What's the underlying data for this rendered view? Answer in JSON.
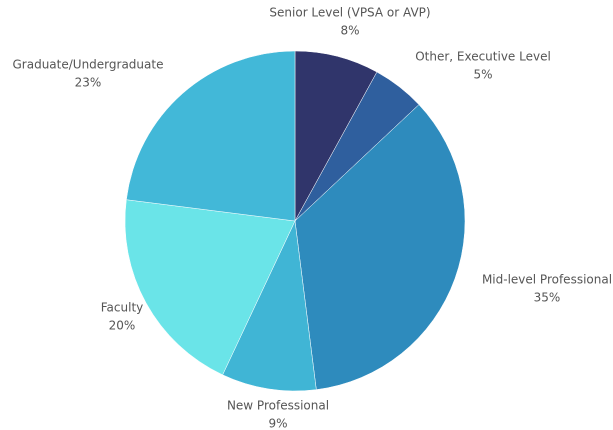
{
  "chart_data": {
    "type": "pie",
    "categories": [
      "Senior Level (VPSA or AVP)",
      "Other, Executive Level",
      "Mid-level Professional",
      "New Professional",
      "Faculty",
      "Graduate/Undergraduate"
    ],
    "values": [
      8,
      5,
      35,
      9,
      20,
      23
    ],
    "value_labels": [
      "8%",
      "5%",
      "35%",
      "9%",
      "20%",
      "23%"
    ],
    "colors": [
      "#30356b",
      "#2f5f9e",
      "#2e8bbd",
      "#40b5d5",
      "#6ae4e8",
      "#42b8d8"
    ]
  }
}
